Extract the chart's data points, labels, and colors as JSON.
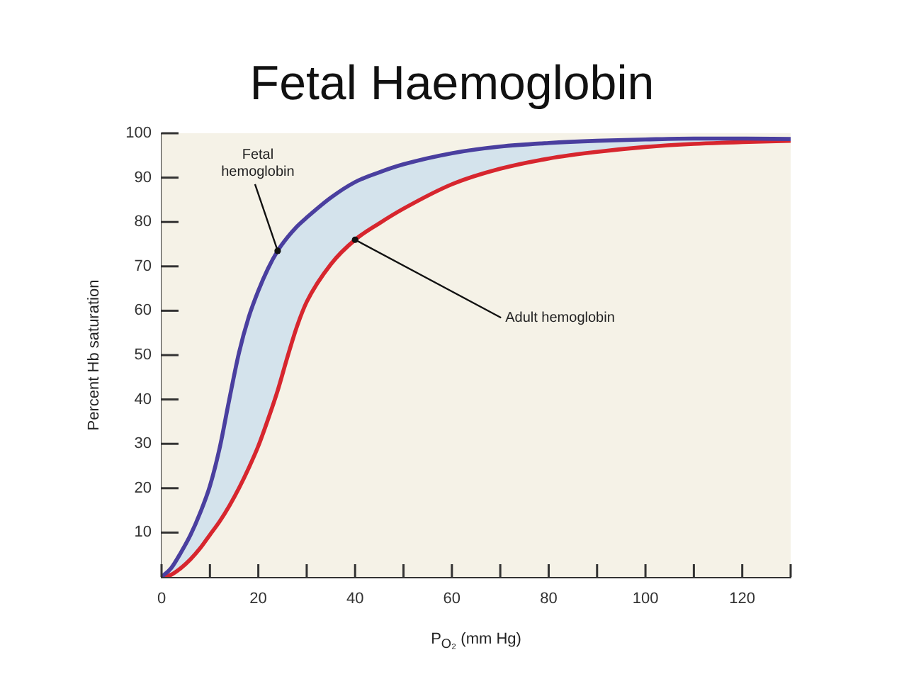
{
  "chart_data": {
    "type": "line",
    "title": "Fetal Haemoglobin",
    "xlabel": "P$_{O₂}$ (mm Hg)",
    "ylabel": "Percent Hb saturation",
    "x": [
      0,
      2,
      4,
      6,
      8,
      10,
      12,
      14,
      16,
      18,
      20,
      22,
      24,
      26,
      28,
      30,
      35,
      40,
      45,
      50,
      60,
      70,
      80,
      90,
      100,
      110,
      120,
      130
    ],
    "series": [
      {
        "name": "Fetal hemoglobin",
        "color": "#4a3f9f",
        "values": [
          0,
          2,
          5.5,
          9.5,
          14.5,
          20.5,
          29,
          40,
          50.5,
          58.5,
          64.5,
          69.5,
          73.5,
          76.5,
          79,
          81,
          85.5,
          89,
          91.2,
          93,
          95.5,
          97,
          97.8,
          98.3,
          98.6,
          98.8,
          98.8,
          98.7
        ],
        "lower": [
          0,
          0.5,
          2,
          4,
          6.5,
          9.5,
          12.5,
          16,
          20,
          24.5,
          29.5,
          35.5,
          42,
          49.5,
          56.5,
          62,
          70.5,
          76,
          79.7,
          83,
          88.5,
          92,
          94.3,
          95.8,
          96.9,
          97.6,
          98,
          98.3
        ],
        "upper": [
          0,
          2,
          5.5,
          9.5,
          14.5,
          20.5,
          29,
          40,
          50.5,
          58.5,
          64.5,
          69.5,
          73.5,
          76.5,
          79,
          81,
          85.5,
          89,
          91.2,
          93,
          95.5,
          97,
          97.8,
          98.3,
          98.6,
          98.8,
          98.8,
          98.7
        ]
      },
      {
        "name": "Adult hemoglobin",
        "color": "#d7262e",
        "values": [
          0,
          0.5,
          2,
          4,
          6.5,
          9.5,
          12.5,
          16,
          20,
          24.5,
          29.5,
          35.5,
          42,
          49.5,
          56.5,
          62,
          70.5,
          76,
          79.7,
          83,
          88.5,
          92,
          94.3,
          95.8,
          96.9,
          97.6,
          98,
          98.3
        ]
      }
    ],
    "xlim": [
      0,
      130
    ],
    "xticks": [
      0,
      {
        "value": 10,
        "label": null
      },
      20,
      {
        "value": 30,
        "label": null
      },
      40,
      {
        "value": 50,
        "label": null
      },
      60,
      {
        "value": 70,
        "label": null
      },
      80,
      {
        "value": 90,
        "label": null
      },
      100,
      {
        "value": 110,
        "label": null
      },
      120,
      {
        "value": 130,
        "label": null
      }
    ],
    "ylim": [
      0,
      100
    ],
    "yticks": [
      10,
      20,
      30,
      40,
      50,
      60,
      70,
      80,
      90,
      100
    ],
    "legend": false
  }
}
